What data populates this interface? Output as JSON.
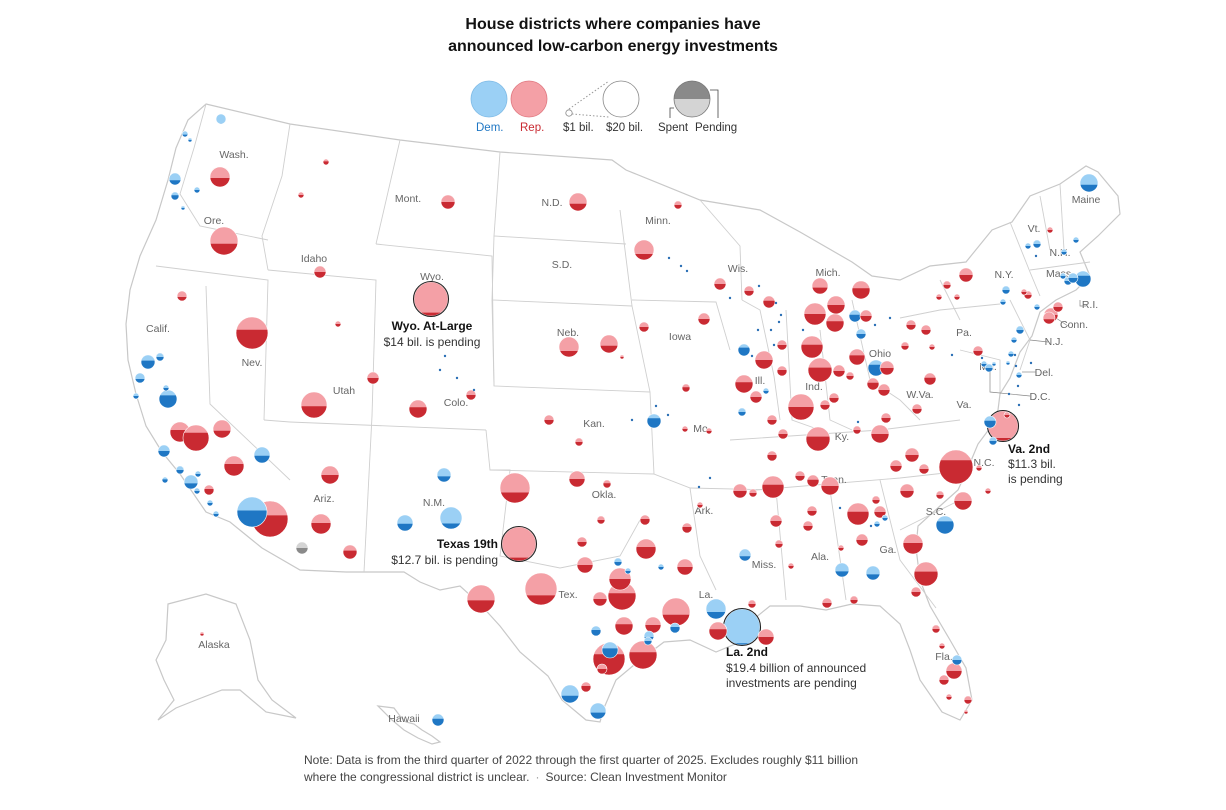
{
  "title": {
    "line1": "House districts where companies have",
    "line2": "announced low-carbon energy investments"
  },
  "colors": {
    "dem_light": "#9bd0f5",
    "dem_dark": "#1f77c4",
    "rep_light": "#f4a0a6",
    "rep_dark": "#c92a32",
    "neutral_light": "#d4d4d4",
    "neutral_dark": "#8a8a8a",
    "state_fill": "#ffffff",
    "state_stroke": "#cfcfcf"
  },
  "legend": {
    "dem": "Dem.",
    "rep": "Rep.",
    "size_small": "$1 bil.",
    "size_large": "$20 bil.",
    "spent": "Spent",
    "pending": "Pending"
  },
  "state_labels": [
    "Wash.",
    "Ore.",
    "Calif.",
    "Nev.",
    "Idaho",
    "Mont.",
    "Wyo.",
    "Utah",
    "Colo.",
    "Ariz.",
    "N.M.",
    "N.D.",
    "S.D.",
    "Neb.",
    "Kan.",
    "Okla.",
    "Tex.",
    "Minn.",
    "Iowa",
    "Mo.",
    "Ark.",
    "La.",
    "Wis.",
    "Ill.",
    "Mich.",
    "Ind.",
    "Ohio",
    "Ky.",
    "Tenn.",
    "Miss.",
    "Ala.",
    "Ga.",
    "Fla.",
    "S.C.",
    "N.C.",
    "Va.",
    "W.Va.",
    "Pa.",
    "N.Y.",
    "Vt.",
    "N.H.",
    "Maine",
    "Mass.",
    "R.I.",
    "Conn.",
    "N.J.",
    "Del.",
    "Md.",
    "D.C.",
    "Alaska",
    "Hawaii"
  ],
  "annotations": [
    {
      "name": "Wyo. At-Large",
      "desc": [
        "$14 bil. is pending"
      ]
    },
    {
      "name": "Texas 19th",
      "desc": [
        "$12.7 bil. is pending"
      ]
    },
    {
      "name": "La. 2nd",
      "desc": [
        "$19.4 billion of announced",
        "investments are pending"
      ]
    },
    {
      "name": "Va. 2nd",
      "desc": [
        "$11.3 bil.",
        "is pending"
      ]
    }
  ],
  "note": {
    "line1": "Note: Data is from the third quarter of 2022 through the first quarter of 2025. Excludes roughly $11 billion",
    "line2": "where the congressional district is unclear.",
    "source": "Source: Clean Investment Monitor"
  },
  "districts": [
    {
      "district": "Wyo. At-Large",
      "party": "R",
      "amount_bil": 14.0,
      "pending_share": 0.9
    },
    {
      "district": "Texas 19th",
      "party": "R",
      "amount_bil": 12.7,
      "pending_share": 0.9
    },
    {
      "district": "La. 2nd",
      "party": "D",
      "amount_bil": 19.4,
      "pending_share": 0.95
    },
    {
      "district": "Va. 2nd",
      "party": "R",
      "amount_bil": 11.3,
      "pending_share": 0.9
    },
    {
      "district": "Nev. (Reno area)",
      "party": "R",
      "amount_bil": 10.5,
      "pending_share": 0.4
    },
    {
      "district": "Ariz. (Phoenix West)",
      "party": "R",
      "amount_bil": 12.0,
      "pending_share": 0.4
    },
    {
      "district": "Ariz. (Phoenix)",
      "party": "D",
      "amount_bil": 8.5,
      "pending_share": 0.45
    },
    {
      "district": "N.C. (Triad)",
      "party": "R",
      "amount_bil": 11.0,
      "pending_share": 0.3
    },
    {
      "district": "Tex. (Houston)",
      "party": "R",
      "amount_bil": 10.0,
      "pending_share": 0.35
    },
    {
      "district": "Ore. (East)",
      "party": "R",
      "amount_bil": 7.0,
      "pending_share": 0.6
    }
  ]
}
